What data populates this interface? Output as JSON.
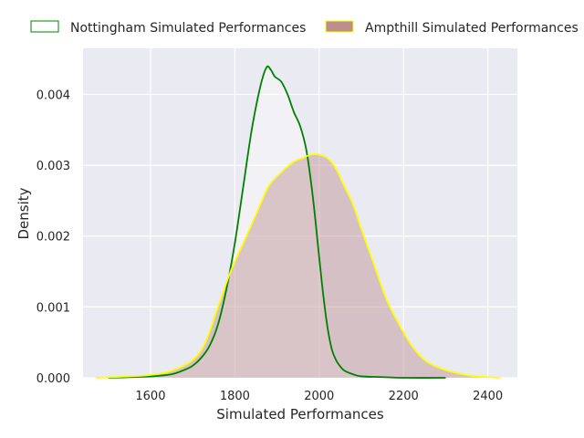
{
  "chart_data": {
    "type": "area",
    "xlabel": "Simulated Performances",
    "ylabel": "Density",
    "xlim": [
      1440,
      2470
    ],
    "ylim": [
      0,
      0.00465
    ],
    "xticks": [
      1600,
      1800,
      2000,
      2200,
      2400
    ],
    "xtick_labels": [
      "1600",
      "1800",
      "2000",
      "2200",
      "2400"
    ],
    "yticks": [
      0.0,
      0.001,
      0.002,
      0.003,
      0.004
    ],
    "ytick_labels": [
      "0.000",
      "0.001",
      "0.002",
      "0.003",
      "0.004"
    ],
    "grid": true,
    "legend": {
      "placement": "top",
      "ncol": 2
    },
    "colors": {
      "background": "#eaeaf2",
      "grid": "#ffffff",
      "nottingham_line": "#008000",
      "nottingham_fill": "#ffffff",
      "ampthill_line": "#ffff00",
      "ampthill_fill": "#bc8f8f"
    },
    "series": [
      {
        "name": "Nottingham Simulated Performances",
        "x": [
          1500,
          1600,
          1650,
          1680,
          1700,
          1720,
          1740,
          1760,
          1780,
          1800,
          1820,
          1840,
          1860,
          1875,
          1885,
          1895,
          1910,
          1925,
          1940,
          1955,
          1970,
          1985,
          2000,
          2010,
          2020,
          2030,
          2040,
          2050,
          2060,
          2080,
          2100,
          2150,
          2200,
          2300
        ],
        "y": [
          0.0,
          2e-05,
          5e-05,
          0.00011,
          0.00017,
          0.00028,
          0.00045,
          0.00075,
          0.00125,
          0.0019,
          0.0027,
          0.0035,
          0.0041,
          0.00438,
          0.00435,
          0.00425,
          0.00418,
          0.004,
          0.00375,
          0.00355,
          0.0032,
          0.00255,
          0.0017,
          0.00115,
          0.0007,
          0.0004,
          0.00025,
          0.00016,
          0.0001,
          5e-05,
          2e-05,
          1e-05,
          0.0,
          0.0
        ]
      },
      {
        "name": "Ampthill Simulated Performances",
        "x": [
          1470,
          1550,
          1600,
          1650,
          1700,
          1730,
          1760,
          1790,
          1820,
          1850,
          1880,
          1910,
          1940,
          1960,
          1980,
          2000,
          2020,
          2040,
          2060,
          2080,
          2100,
          2130,
          2160,
          2190,
          2220,
          2250,
          2280,
          2310,
          2340,
          2370,
          2400,
          2430
        ],
        "y": [
          0.0,
          2e-05,
          4e-05,
          0.0001,
          0.00025,
          0.0005,
          0.001,
          0.0015,
          0.0019,
          0.0023,
          0.0027,
          0.0029,
          0.00305,
          0.0031,
          0.00315,
          0.00315,
          0.0031,
          0.00295,
          0.0027,
          0.00245,
          0.0021,
          0.0016,
          0.0011,
          0.00075,
          0.00045,
          0.00025,
          0.00015,
          9e-05,
          5e-05,
          2e-05,
          1e-05,
          0.0
        ]
      }
    ]
  }
}
